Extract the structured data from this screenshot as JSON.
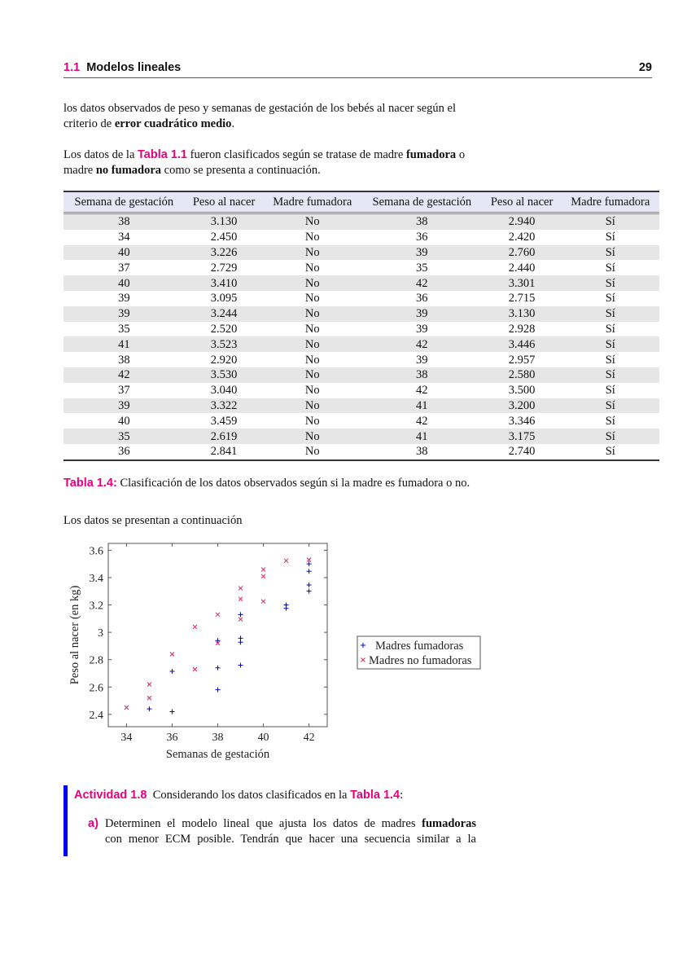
{
  "header": {
    "section_number": "1.1",
    "section_title": "Modelos lineales",
    "page_number": "29"
  },
  "intro": {
    "line1": "los datos observados de peso y semanas de gestación de los bebés al nacer según el",
    "line2_pre": "criterio de ",
    "line2_bold": "error cuadrático medio",
    "line2_post": "."
  },
  "classification": {
    "pre": "Los datos de la ",
    "ref": "Tabla 1.1",
    "mid": " fueron clasificados según se tratase de madre ",
    "bold1": "fumadora",
    "mid2": " o",
    "line2_pre": "madre ",
    "bold2": "no fumadora",
    "line2_post": " como se presenta a continuación."
  },
  "table": {
    "headers": [
      "Semana de gestación",
      "Peso al nacer",
      "Madre fumadora",
      "Semana de gestación",
      "Peso al nacer",
      "Madre fumadora"
    ],
    "rows": [
      [
        "38",
        "3.130",
        "No",
        "38",
        "2.940",
        "Sí"
      ],
      [
        "34",
        "2.450",
        "No",
        "36",
        "2.420",
        "Sí"
      ],
      [
        "40",
        "3.226",
        "No",
        "39",
        "2.760",
        "Sí"
      ],
      [
        "37",
        "2.729",
        "No",
        "35",
        "2.440",
        "Sí"
      ],
      [
        "40",
        "3.410",
        "No",
        "42",
        "3.301",
        "Sí"
      ],
      [
        "39",
        "3.095",
        "No",
        "36",
        "2.715",
        "Sí"
      ],
      [
        "39",
        "3.244",
        "No",
        "39",
        "3.130",
        "Sí"
      ],
      [
        "35",
        "2.520",
        "No",
        "39",
        "2.928",
        "Sí"
      ],
      [
        "41",
        "3.523",
        "No",
        "42",
        "3.446",
        "Sí"
      ],
      [
        "38",
        "2.920",
        "No",
        "39",
        "2.957",
        "Sí"
      ],
      [
        "42",
        "3.530",
        "No",
        "38",
        "2.580",
        "Sí"
      ],
      [
        "37",
        "3.040",
        "No",
        "42",
        "3.500",
        "Sí"
      ],
      [
        "39",
        "3.322",
        "No",
        "41",
        "3.200",
        "Sí"
      ],
      [
        "40",
        "3.459",
        "No",
        "42",
        "3.346",
        "Sí"
      ],
      [
        "35",
        "2.619",
        "No",
        "41",
        "3.175",
        "Sí"
      ],
      [
        "36",
        "2.841",
        "No",
        "38",
        "2.740",
        "Sí"
      ]
    ],
    "caption_label": "Tabla 1.4:",
    "caption_text": " Clasificación de los datos observados según si la madre es fumadora o no."
  },
  "plot_intro": "Los datos se presentan a continuación",
  "chart_data": {
    "type": "scatter",
    "xlabel": "Semanas de gestación",
    "ylabel": "Peso al nacer (en kg)",
    "xlim": [
      33.2,
      42.8
    ],
    "ylim": [
      2.31,
      3.65
    ],
    "xticks": [
      34,
      36,
      38,
      40,
      42
    ],
    "yticks": [
      2.4,
      2.6,
      2.8,
      3,
      3.2,
      3.4,
      3.6
    ],
    "ytick_labels": [
      "2.4",
      "2.6",
      "2.8",
      "3",
      "3.2",
      "3.4",
      "3.6"
    ],
    "grid": false,
    "legend_placement": "outside-right",
    "series": [
      {
        "name": "Madres fumadoras",
        "marker": "plus",
        "color": "#0000ee",
        "x": [
          38,
          36,
          39,
          35,
          42,
          36,
          39,
          39,
          42,
          39,
          38,
          42,
          41,
          42,
          41,
          38
        ],
        "y": [
          2.94,
          2.42,
          2.76,
          2.44,
          3.301,
          2.715,
          3.13,
          2.928,
          3.446,
          2.957,
          2.58,
          3.5,
          3.2,
          3.346,
          3.175,
          2.74
        ]
      },
      {
        "name": "Madres no fumadoras",
        "marker": "x",
        "color": "#d6206b",
        "x": [
          38,
          34,
          40,
          37,
          40,
          39,
          39,
          35,
          41,
          38,
          42,
          37,
          39,
          40,
          35,
          36
        ],
        "y": [
          3.13,
          2.45,
          3.226,
          2.729,
          3.41,
          3.095,
          3.244,
          2.52,
          3.523,
          2.92,
          3.53,
          3.04,
          3.322,
          3.459,
          2.619,
          2.841
        ]
      }
    ]
  },
  "activity": {
    "label": "Actividad 1.8",
    "text_pre": "  Considerando los datos clasificados en la ",
    "ref": "Tabla 1.4",
    "text_post": ":",
    "item_label": "a)",
    "item_line1_pre": "Determinen el modelo lineal que ajusta los datos de madres ",
    "item_line1_bold": "fumadoras",
    "item_line2": "con menor ECM posible. Tendrán que hacer una secuencia similar a la"
  }
}
